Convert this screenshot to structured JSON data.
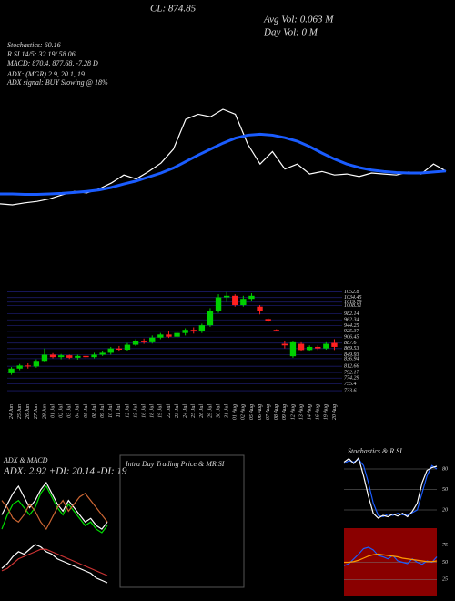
{
  "header": {
    "cl": "CL: 874.85",
    "avg_vol": "Avg Vol: 0.063 M",
    "day_vol": "Day Vol: 0 M",
    "info": [
      "Stochastics: 60.16",
      "R SI 14/5: 32.19/ 58.06",
      "MACD: 870.4, 877.68, -7.28 D",
      "ADX: (MGR) 2.9, 20.1, 19",
      "ADX signal: BUY Slowing @ 18%"
    ]
  },
  "panels": {
    "adx_title": "ADX & MACD",
    "adx_text": "ADX: 2.92 +DI: 20.14 -DI: 19",
    "intraday_title": "Intra Day Trading Price & MR SI",
    "stoch_title": "Stochastics & R SI"
  },
  "chart_data": [
    {
      "type": "candlestick",
      "up_color": "#00d000",
      "down_color": "#ff2020",
      "grid": true,
      "categories": [
        "24 Jun",
        "25 Jun",
        "26 Jun",
        "27 Jun",
        "28 Jun",
        "01 Jul",
        "02 Jul",
        "03 Jul",
        "04 Jul",
        "05 Jul",
        "08 Jul",
        "09 Jul",
        "10 Jul",
        "11 Jul",
        "12 Jul",
        "15 Jul",
        "16 Jul",
        "18 Jul",
        "19 Jul",
        "22 Jul",
        "23 Jul",
        "24 Jul",
        "25 Jul",
        "26 Jul",
        "29 Jul",
        "30 Jul",
        "31 Jul",
        "01 Aug",
        "02 Aug",
        "05 Aug",
        "06 Aug",
        "07 Aug",
        "08 Aug",
        "09 Aug",
        "12 Aug",
        "13 Aug",
        "14 Aug",
        "16 Aug",
        "19 Aug",
        "20 Aug"
      ],
      "series": [
        {
          "name": "Open",
          "values": [
            790,
            805,
            815,
            812,
            830,
            850,
            842,
            848,
            840,
            846,
            842,
            850,
            856,
            870,
            866,
            882,
            895,
            890,
            905,
            915,
            908,
            920,
            930,
            925,
            945,
            990,
            1035,
            1040,
            1010,
            1030,
            1005,
            965,
            930,
            885,
            845,
            885,
            865,
            875,
            870,
            888
          ]
        },
        {
          "name": "High",
          "values": [
            810,
            820,
            822,
            835,
            870,
            855,
            852,
            850,
            850,
            848,
            856,
            862,
            875,
            878,
            888,
            900,
            902,
            912,
            920,
            925,
            926,
            935,
            938,
            950,
            1000,
            1045,
            1052,
            1045,
            1040,
            1048,
            1010,
            968,
            932,
            895,
            892,
            890,
            880,
            880,
            890,
            900
          ]
        },
        {
          "name": "Low",
          "values": [
            785,
            800,
            805,
            808,
            826,
            838,
            835,
            836,
            834,
            836,
            838,
            846,
            850,
            860,
            862,
            878,
            885,
            886,
            900,
            904,
            904,
            912,
            918,
            920,
            940,
            985,
            1020,
            1005,
            1005,
            1022,
            980,
            955,
            925,
            870,
            840,
            860,
            860,
            865,
            866,
            865
          ]
        },
        {
          "name": "Close",
          "values": [
            805,
            815,
            812,
            830,
            850,
            842,
            848,
            840,
            846,
            842,
            850,
            856,
            870,
            866,
            882,
            895,
            890,
            905,
            915,
            908,
            920,
            930,
            925,
            945,
            990,
            1035,
            1040,
            1010,
            1030,
            1040,
            990,
            960,
            928,
            880,
            890,
            865,
            875,
            870,
            885,
            875
          ]
        }
      ],
      "ylim": [
        725,
        1060
      ],
      "yticks": [
        1052.8,
        1034.45,
        1019.79,
        1008.51,
        982.14,
        962.34,
        944.25,
        925.37,
        906.45,
        887.6,
        869.53,
        849.93,
        836.94,
        812.66,
        792.17,
        774.29,
        755.4,
        733.6
      ]
    },
    {
      "type": "line",
      "series": [
        {
          "color": "#ffffff",
          "values": [
            820,
            818,
            822,
            825,
            830,
            838,
            845,
            842,
            850,
            862,
            878,
            870,
            885,
            902,
            930,
            990,
            1000,
            995,
            1010,
            1000,
            940,
            900,
            925,
            890,
            900,
            880,
            885,
            878,
            880,
            875,
            882,
            880,
            878,
            884,
            880,
            900,
            886
          ]
        },
        {
          "color": "#1a5cff",
          "values": [
            840,
            840,
            839,
            839,
            840,
            841,
            843,
            845,
            848,
            853,
            860,
            866,
            874,
            882,
            892,
            905,
            918,
            930,
            942,
            952,
            958,
            960,
            958,
            953,
            946,
            935,
            922,
            910,
            900,
            893,
            888,
            885,
            883,
            882,
            882,
            884,
            886
          ]
        }
      ]
    },
    {
      "type": "line",
      "series": [
        {
          "color": "#ffffff",
          "values": [
            22,
            25,
            28,
            30,
            27,
            24,
            26,
            29,
            31,
            28,
            25,
            23,
            26,
            24,
            22,
            20,
            21,
            19,
            18,
            20
          ]
        },
        {
          "color": "#00e000",
          "values": [
            18,
            22,
            25,
            26,
            24,
            22,
            24,
            28,
            30,
            27,
            24,
            22,
            25,
            23,
            21,
            19,
            20,
            18,
            17,
            19
          ]
        },
        {
          "color": "#cc6633",
          "values": [
            26,
            24,
            21,
            20,
            22,
            25,
            23,
            20,
            18,
            21,
            24,
            26,
            23,
            25,
            27,
            28,
            26,
            24,
            22,
            20
          ]
        }
      ]
    },
    {
      "type": "line",
      "series": [
        {
          "color": "#ffffff",
          "values": [
            2,
            4,
            7,
            9,
            8,
            10,
            12,
            11,
            9,
            8,
            6,
            5,
            4,
            3,
            2,
            1,
            0,
            -2,
            -3,
            -4
          ]
        },
        {
          "color": "#cc3333",
          "values": [
            1,
            2,
            4,
            6,
            7,
            8,
            9,
            10,
            10,
            9,
            8,
            7,
            6,
            5,
            4,
            3,
            2,
            1,
            0,
            -1
          ]
        }
      ]
    },
    {
      "type": "line",
      "bg": "#000000",
      "ylim": [
        0,
        100
      ],
      "yticks": [
        80,
        50,
        20
      ],
      "grid": true,
      "series": [
        {
          "color": "#1a5cff",
          "values": [
            88,
            92,
            90,
            94,
            85,
            60,
            30,
            12,
            10,
            14,
            12,
            15,
            13,
            12,
            16,
            20,
            45,
            70,
            85,
            80
          ]
        },
        {
          "color": "#ffffff",
          "values": [
            90,
            95,
            88,
            96,
            70,
            40,
            15,
            8,
            12,
            10,
            14,
            11,
            15,
            10,
            18,
            30,
            60,
            78,
            82,
            84
          ]
        }
      ]
    },
    {
      "type": "line",
      "bg": "#8a0000",
      "ylim": [
        0,
        100
      ],
      "yticks": [
        75,
        50,
        25
      ],
      "grid": true,
      "series": [
        {
          "color": "#1a5cff",
          "values": [
            45,
            48,
            55,
            62,
            70,
            72,
            68,
            60,
            58,
            55,
            60,
            52,
            50,
            48,
            55,
            50,
            47,
            52,
            50,
            58
          ]
        },
        {
          "color": "#ff9900",
          "values": [
            50,
            50,
            51,
            53,
            56,
            59,
            61,
            62,
            61,
            60,
            59,
            58,
            56,
            55,
            54,
            53,
            52,
            51,
            51,
            52
          ]
        }
      ]
    }
  ]
}
